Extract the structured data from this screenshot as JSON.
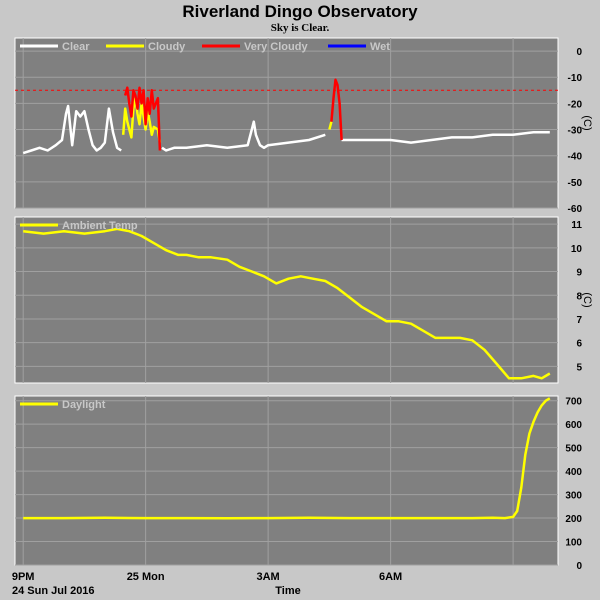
{
  "header": {
    "title": "Riverland Dingo Observatory",
    "subtitle": "Sky is Clear."
  },
  "footer": {
    "date_label": "24 Sun Jul 2016",
    "xlabel": "Time",
    "x_ticks": [
      "9PM",
      "25 Mon",
      "3AM",
      "6AM"
    ]
  },
  "colors": {
    "background": "#c8c8c8",
    "panel": "#808080",
    "grid": "#a0a0a0",
    "clear": "#ffffff",
    "cloudy": "#ffff00",
    "very_cloudy": "#ff0000",
    "wet": "#0000ff",
    "line": "#ffff00"
  },
  "chart_data": [
    {
      "type": "line",
      "id": "sky",
      "ylabel": "(C)",
      "ylim": [
        -60,
        5
      ],
      "yticks": [
        0,
        -10,
        -20,
        -30,
        -40,
        -50,
        -60
      ],
      "threshold": -15,
      "legend": [
        {
          "label": "Clear",
          "color": "#ffffff"
        },
        {
          "label": "Cloudy",
          "color": "#ffff00"
        },
        {
          "label": "Very Cloudy",
          "color": "#ff0000"
        },
        {
          "label": "Wet",
          "color": "#0000ff"
        }
      ],
      "x": [
        0,
        0.2,
        0.4,
        0.6,
        0.8,
        0.95,
        1.05,
        1.1,
        1.2,
        1.3,
        1.4,
        1.5,
        1.6,
        1.7,
        1.8,
        1.9,
        2.0,
        2.1,
        2.2,
        2.3,
        2.4,
        2.45,
        2.5,
        2.55,
        2.6,
        2.65,
        2.7,
        2.75,
        2.8,
        2.85,
        2.9,
        2.95,
        3.0,
        3.05,
        3.1,
        3.15,
        3.2,
        3.3,
        3.35,
        3.4,
        3.5,
        3.7,
        4.0,
        4.5,
        5.0,
        5.5,
        5.6,
        5.65,
        5.7,
        5.75,
        5.8,
        5.9,
        6.0,
        7.0,
        7.4,
        7.5,
        7.55,
        7.6,
        7.65,
        7.7,
        7.75,
        7.8,
        8.0,
        8.5,
        9.0,
        9.5,
        10.0,
        10.5,
        11.0,
        11.5,
        12.0,
        12.5,
        12.9
      ],
      "series": [
        {
          "name": "Clear",
          "color": "#ffffff",
          "values": [
            -39,
            -38,
            -37,
            -38,
            -36,
            -34,
            -24,
            -21,
            -36,
            -23,
            -25,
            -23,
            -30,
            -36,
            -38,
            -37,
            -35,
            -22,
            -31,
            -37,
            -38,
            null,
            null,
            null,
            null,
            null,
            null,
            null,
            null,
            null,
            null,
            null,
            null,
            null,
            null,
            null,
            null,
            null,
            null,
            -37,
            -38,
            -37,
            -37,
            -36,
            -37,
            -36,
            -30,
            -27,
            -32,
            -34,
            -36,
            -37,
            -36,
            -34,
            -32,
            null,
            null,
            null,
            null,
            null,
            null,
            -34,
            -34,
            -34,
            -34,
            -35,
            -34,
            -33,
            -33,
            -32,
            -32,
            -31,
            -31
          ]
        },
        {
          "name": "Cloudy",
          "color": "#ffff00",
          "values": [
            null,
            null,
            null,
            null,
            null,
            null,
            null,
            null,
            null,
            null,
            null,
            null,
            null,
            null,
            null,
            null,
            null,
            null,
            null,
            null,
            null,
            -32,
            -22,
            -27,
            -30,
            -33,
            -22,
            -18,
            -24,
            -28,
            -20,
            -25,
            -30,
            -23,
            -27,
            -32,
            -29,
            -30,
            -35,
            null,
            null,
            null,
            null,
            null,
            null,
            null,
            null,
            null,
            null,
            null,
            null,
            null,
            null,
            null,
            null,
            -30,
            -27,
            null,
            null,
            null,
            null,
            null,
            null,
            null,
            null,
            null,
            null,
            null,
            null,
            null,
            null,
            null,
            null
          ]
        },
        {
          "name": "Very Cloudy",
          "color": "#ff0000",
          "values": [
            null,
            null,
            null,
            null,
            null,
            null,
            null,
            null,
            null,
            null,
            null,
            null,
            null,
            null,
            null,
            null,
            null,
            null,
            null,
            null,
            null,
            null,
            -17,
            -14,
            -20,
            -25,
            -15,
            -17,
            -22,
            -14,
            -20,
            -15,
            -28,
            -18,
            -24,
            -15,
            -22,
            -18,
            -38,
            null,
            null,
            null,
            null,
            null,
            null,
            null,
            null,
            null,
            null,
            null,
            null,
            null,
            null,
            null,
            null,
            null,
            -27,
            -18,
            -11,
            -13,
            -20,
            -34,
            null,
            null,
            null,
            null,
            null,
            null,
            null,
            null,
            null,
            null,
            null
          ]
        }
      ]
    },
    {
      "type": "line",
      "id": "ambient",
      "ylabel": "(C)",
      "ylim": [
        4.3,
        11.3
      ],
      "yticks": [
        11,
        10,
        9,
        8,
        7,
        6,
        5
      ],
      "legend": [
        {
          "label": "Ambient Temp",
          "color": "#ffff00"
        }
      ],
      "x": [
        0,
        0.5,
        1.0,
        1.5,
        2.0,
        2.3,
        2.6,
        2.9,
        3.2,
        3.5,
        3.8,
        4.0,
        4.3,
        4.6,
        5.0,
        5.3,
        5.6,
        5.9,
        6.2,
        6.5,
        6.8,
        7.1,
        7.4,
        7.7,
        8.0,
        8.3,
        8.6,
        8.9,
        9.2,
        9.5,
        9.8,
        10.1,
        10.4,
        10.7,
        11.0,
        11.3,
        11.6,
        11.9,
        12.2,
        12.5,
        12.7,
        12.9
      ],
      "values": [
        10.7,
        10.6,
        10.7,
        10.6,
        10.7,
        10.8,
        10.7,
        10.5,
        10.2,
        9.9,
        9.7,
        9.7,
        9.6,
        9.6,
        9.5,
        9.2,
        9.0,
        8.8,
        8.5,
        8.7,
        8.8,
        8.7,
        8.6,
        8.3,
        7.9,
        7.5,
        7.2,
        6.9,
        6.9,
        6.8,
        6.5,
        6.2,
        6.2,
        6.2,
        6.1,
        5.7,
        5.1,
        4.5,
        4.5,
        4.6,
        4.5,
        4.7
      ]
    },
    {
      "type": "line",
      "id": "daylight",
      "ylim": [
        0,
        720
      ],
      "yticks": [
        700,
        600,
        500,
        400,
        300,
        200,
        100,
        0
      ],
      "legend": [
        {
          "label": "Daylight",
          "color": "#ffff00"
        }
      ],
      "x": [
        0,
        1,
        2,
        3,
        4,
        5,
        6,
        7,
        8,
        9,
        10,
        11,
        11.5,
        11.8,
        12.0,
        12.1,
        12.2,
        12.3,
        12.4,
        12.5,
        12.6,
        12.7,
        12.8,
        12.9
      ],
      "values": [
        200,
        200,
        201,
        200,
        200,
        199,
        200,
        201,
        200,
        200,
        200,
        200,
        201,
        200,
        205,
        230,
        330,
        470,
        560,
        610,
        650,
        680,
        700,
        710
      ]
    }
  ]
}
